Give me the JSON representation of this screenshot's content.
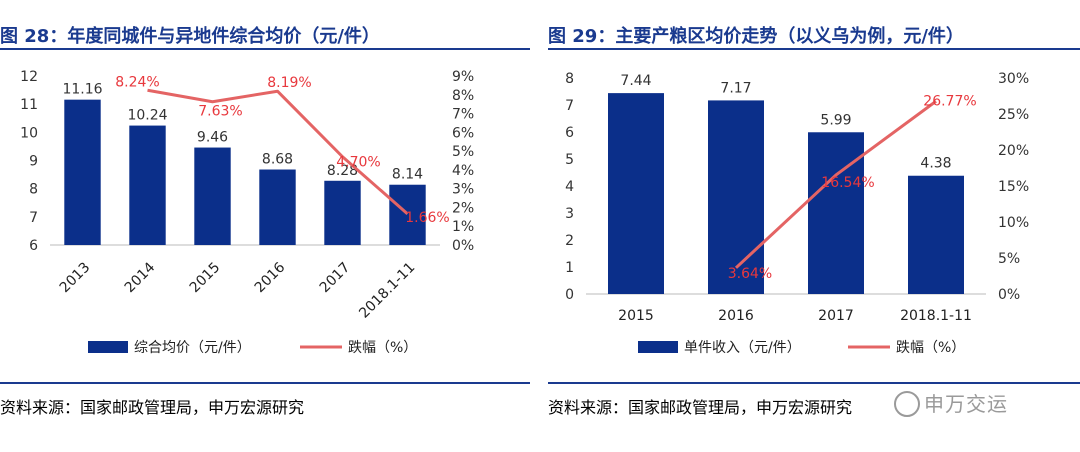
{
  "colors": {
    "bar": "#0b2f8a",
    "line": "#e46464",
    "title": "#1a3a8f"
  },
  "watermark": "申万交运",
  "charts": [
    {
      "title": "图 28：年度同城件与异地件综合均价（元/件）",
      "source": "资料来源：国家邮政管理局，申万宏源研究",
      "legend": {
        "bar": "综合均价（元/件）",
        "line": "跌幅（%）"
      }
    },
    {
      "title": "图 29：主要产粮区均价走势（以义乌为例，元/件）",
      "source": "资料来源：国家邮政管理局，申万宏源研究",
      "legend": {
        "bar": "单件收入（元/件）",
        "line": "跌幅（%）"
      }
    }
  ],
  "chart_data": [
    {
      "type": "bar",
      "title": "图 28：年度同城件与异地件综合均价（元/件）",
      "categories": [
        "2013",
        "2014",
        "2015",
        "2016",
        "2017",
        "2018.1-11"
      ],
      "series": [
        {
          "name": "综合均价（元/件）",
          "type": "bar",
          "axis": "left",
          "values": [
            11.16,
            10.24,
            9.46,
            8.68,
            8.28,
            8.14
          ],
          "labels": [
            "11.16",
            "10.24",
            "9.46",
            "8.68",
            "8.28",
            "8.14"
          ]
        },
        {
          "name": "跌幅（%）",
          "type": "line",
          "axis": "right",
          "values": [
            null,
            8.24,
            7.63,
            8.19,
            4.7,
            1.66
          ],
          "labels": [
            null,
            "8.24%",
            "7.63%",
            "8.19%",
            "4.70%",
            "1.66%"
          ]
        }
      ],
      "ylim_left": [
        6,
        12
      ],
      "yticks_left": [
        "6",
        "7",
        "8",
        "9",
        "10",
        "11",
        "12"
      ],
      "ylim_right": [
        0,
        9
      ],
      "yticks_right": [
        "0%",
        "1%",
        "2%",
        "3%",
        "4%",
        "5%",
        "6%",
        "7%",
        "8%",
        "9%"
      ],
      "legend": "bottom"
    },
    {
      "type": "bar",
      "title": "图 29：主要产粮区均价走势（以义乌为例，元/件）",
      "categories": [
        "2015",
        "2016",
        "2017",
        "2018.1-11"
      ],
      "series": [
        {
          "name": "单件收入（元/件）",
          "type": "bar",
          "axis": "left",
          "values": [
            7.44,
            7.17,
            5.99,
            4.38
          ],
          "labels": [
            "7.44",
            "7.17",
            "5.99",
            "4.38"
          ]
        },
        {
          "name": "跌幅（%）",
          "type": "line",
          "axis": "right",
          "values": [
            null,
            3.64,
            16.54,
            26.77
          ],
          "labels": [
            null,
            "3.64%",
            "16.54%",
            "26.77%"
          ]
        }
      ],
      "ylim_left": [
        0,
        8
      ],
      "yticks_left": [
        "0",
        "1",
        "2",
        "3",
        "4",
        "5",
        "6",
        "7",
        "8"
      ],
      "ylim_right": [
        0,
        30
      ],
      "yticks_right": [
        "0%",
        "5%",
        "10%",
        "15%",
        "20%",
        "25%",
        "30%"
      ],
      "legend": "bottom"
    }
  ]
}
